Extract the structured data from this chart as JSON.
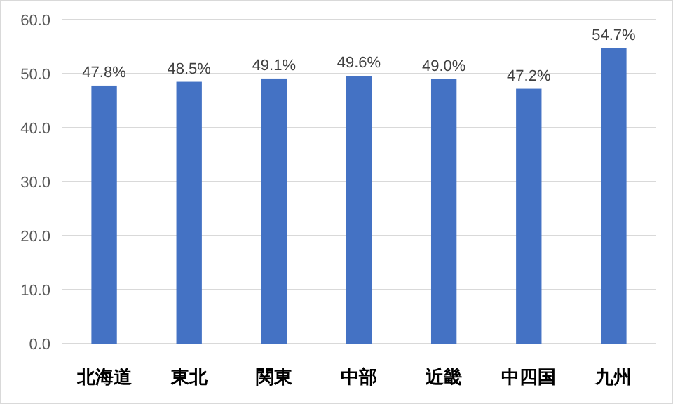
{
  "chart_data": {
    "type": "bar",
    "categories": [
      "北海道",
      "東北",
      "関東",
      "中部",
      "近畿",
      "中四国",
      "九州"
    ],
    "values": [
      47.8,
      48.5,
      49.1,
      49.6,
      49.0,
      47.2,
      54.7
    ],
    "value_labels": [
      "47.8%",
      "48.5%",
      "49.1%",
      "49.6%",
      "49.0%",
      "47.2%",
      "54.7%"
    ],
    "color": "#4472c4",
    "ylim": [
      0,
      60
    ],
    "yticks": [
      {
        "value": 0,
        "label": "0.0"
      },
      {
        "value": 10,
        "label": "10.0"
      },
      {
        "value": 20,
        "label": "20.0"
      },
      {
        "value": 30,
        "label": "30.0"
      },
      {
        "value": 40,
        "label": "40.0"
      },
      {
        "value": 50,
        "label": "50.0"
      },
      {
        "value": 60,
        "label": "60.0"
      }
    ],
    "grid": "y"
  }
}
